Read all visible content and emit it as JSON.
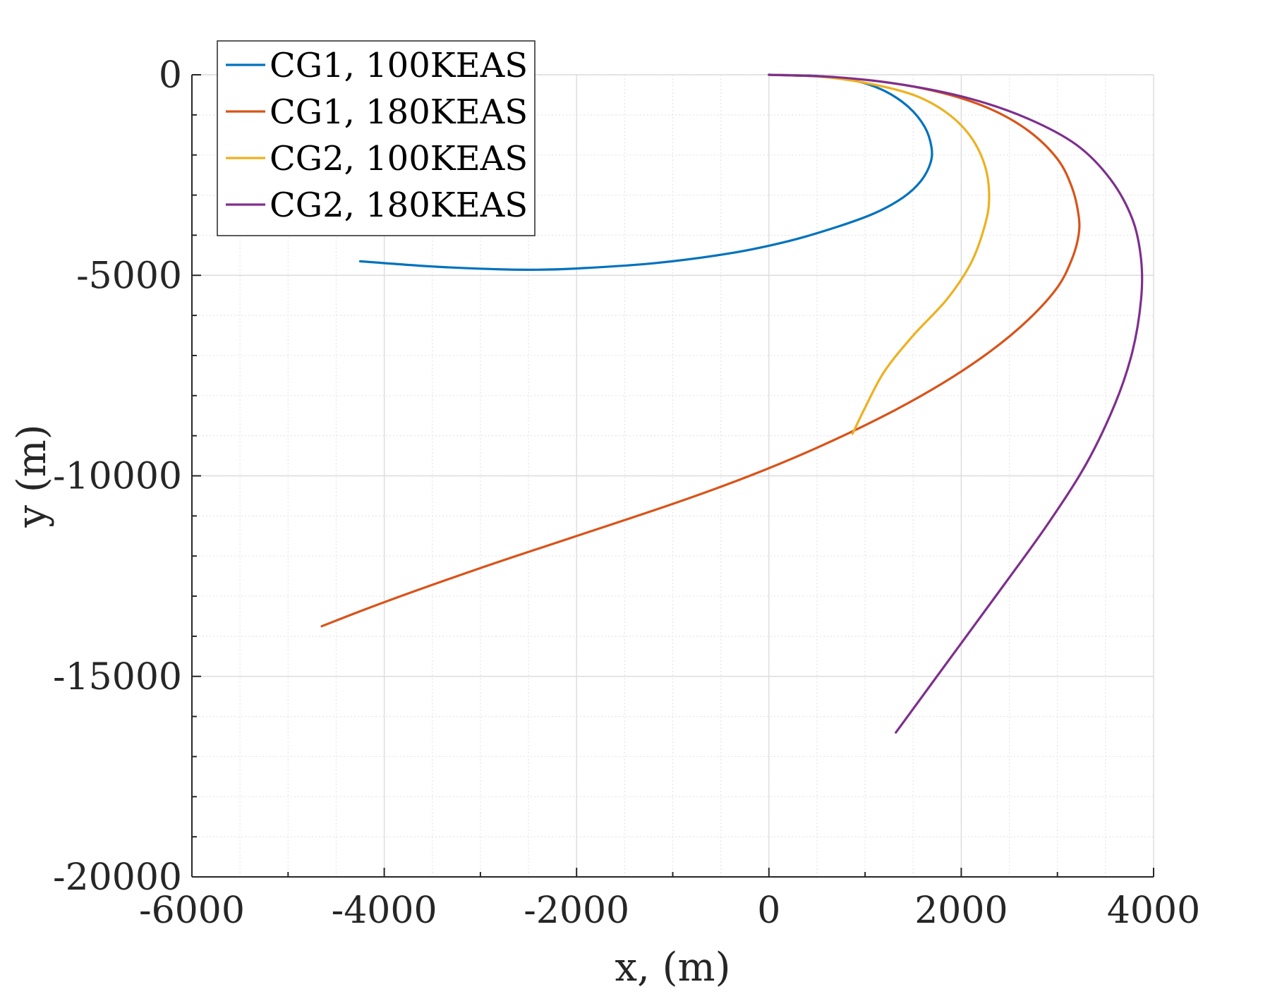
{
  "chart_data": {
    "type": "line",
    "xlabel": "x, (m)",
    "ylabel": "y (m)",
    "xlim": [
      -6000,
      4000
    ],
    "ylim": [
      -20000,
      0
    ],
    "xticks": [
      -6000,
      -4000,
      -2000,
      0,
      2000,
      4000
    ],
    "yticks": [
      0,
      -5000,
      -10000,
      -15000,
      -20000
    ],
    "xtick_labels": [
      "-6000",
      "-4000",
      "-2000",
      "0",
      "2000",
      "4000"
    ],
    "ytick_labels": [
      "0",
      "-5000",
      "-10000",
      "-15000",
      "-20000"
    ],
    "grid": true,
    "minor_grid": true,
    "legend_position": "top-left",
    "series": [
      {
        "name": "CG1, 100KEAS",
        "color": "#0072BD",
        "x": [
          0,
          500,
          900,
          1200,
          1450,
          1620,
          1690,
          1680,
          1580,
          1400,
          1100,
          700,
          200,
          -400,
          -1200,
          -2000,
          -2400,
          -2800,
          -3500,
          -4250
        ],
        "y": [
          0,
          -30,
          -150,
          -400,
          -800,
          -1300,
          -1800,
          -2200,
          -2650,
          -3050,
          -3450,
          -3800,
          -4150,
          -4450,
          -4700,
          -4830,
          -4860,
          -4850,
          -4780,
          -4650
        ]
      },
      {
        "name": "CG1, 180KEAS",
        "color": "#D95319",
        "x": [
          0,
          600,
          1200,
          1800,
          2300,
          2700,
          3000,
          3150,
          3220,
          3220,
          3150,
          3000,
          2700,
          2300,
          1800,
          1200,
          500,
          -200,
          -1000,
          -2000,
          -3000,
          -4000,
          -4650
        ],
        "y": [
          0,
          -50,
          -180,
          -450,
          -850,
          -1400,
          -2100,
          -2800,
          -3500,
          -4000,
          -4600,
          -5300,
          -6100,
          -6900,
          -7700,
          -8500,
          -9300,
          -10000,
          -10700,
          -11500,
          -12300,
          -13150,
          -13750
        ]
      },
      {
        "name": "CG2, 100KEAS",
        "color": "#EDB120",
        "x": [
          0,
          500,
          1000,
          1500,
          1850,
          2100,
          2250,
          2290,
          2240,
          2100,
          1850,
          1500,
          1200,
          1000,
          870
        ],
        "y": [
          0,
          -40,
          -200,
          -500,
          -950,
          -1550,
          -2300,
          -3100,
          -3800,
          -4700,
          -5600,
          -6500,
          -7400,
          -8300,
          -8950
        ]
      },
      {
        "name": "CG2, 180KEAS",
        "color": "#7E2F8E",
        "x": [
          0,
          700,
          1400,
          2100,
          2700,
          3200,
          3550,
          3780,
          3870,
          3870,
          3780,
          3600,
          3300,
          2900,
          2450,
          1900,
          1320
        ],
        "y": [
          0,
          -60,
          -250,
          -600,
          -1100,
          -1750,
          -2600,
          -3600,
          -4600,
          -5600,
          -6900,
          -8200,
          -9700,
          -11200,
          -12700,
          -14500,
          -16400
        ]
      }
    ]
  }
}
